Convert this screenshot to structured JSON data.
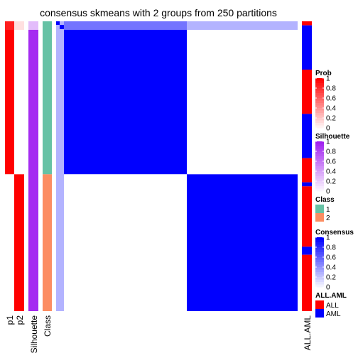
{
  "chart_data": {
    "type": "heatmap",
    "title": "consensus skmeans with 2 groups from 250 partitions",
    "n_samples": 72,
    "column_annotations": [
      {
        "label": "p1",
        "kind": "prob"
      },
      {
        "label": "p2",
        "kind": "prob"
      },
      {
        "label": "Silhouette",
        "kind": "silhouette"
      },
      {
        "label": "Class",
        "kind": "class"
      }
    ],
    "group_sizes": [
      38,
      34
    ],
    "p1_values": [
      0.88,
      1
    ],
    "p2_values": [
      0.12,
      1
    ],
    "silhouette_values": [
      0.8,
      0.95
    ],
    "class_values": [
      1,
      2
    ],
    "consensus_blocks": [
      [
        1,
        0
      ],
      [
        0,
        1
      ]
    ],
    "first_row_consensus": [
      0.55,
      0.3
    ],
    "all_aml_label": "ALL.AML",
    "all_aml_track": [
      {
        "value": "ALL",
        "count": 1
      },
      {
        "value": "AML",
        "count": 11
      },
      {
        "value": "ALL",
        "count": 11
      },
      {
        "value": "AML",
        "count": 11
      },
      {
        "value": "ALL",
        "count": 6
      },
      {
        "value": "AML",
        "count": 1
      },
      {
        "value": "ALL",
        "count": 15
      },
      {
        "value": "AML",
        "count": 2
      },
      {
        "value": "ALL",
        "count": 14
      }
    ],
    "legends": [
      {
        "title": "Prob",
        "type": "gradient",
        "low": "#ffffff",
        "high": "#ff0000",
        "ticks": [
          "1",
          "0.8",
          "0.6",
          "0.4",
          "0.2",
          "0"
        ]
      },
      {
        "title": "Silhouette",
        "type": "gradient",
        "low": "#ffffff",
        "high": "#a020f0",
        "ticks": [
          "1",
          "0.8",
          "0.6",
          "0.4",
          "0.2",
          "0"
        ]
      },
      {
        "title": "Class",
        "type": "discrete",
        "items": [
          {
            "label": "1",
            "color": "#66c2a5"
          },
          {
            "label": "2",
            "color": "#fc8d62"
          }
        ]
      },
      {
        "title": "Consensus",
        "type": "gradient",
        "low": "#ffffff",
        "high": "#0000ff",
        "ticks": [
          "1",
          "0.8",
          "0.6",
          "0.4",
          "0.2",
          "0"
        ]
      },
      {
        "title": "ALL.AML",
        "type": "discrete",
        "items": [
          {
            "label": "ALL",
            "color": "#ff0000"
          },
          {
            "label": "AML",
            "color": "#0000ff"
          }
        ]
      }
    ]
  }
}
